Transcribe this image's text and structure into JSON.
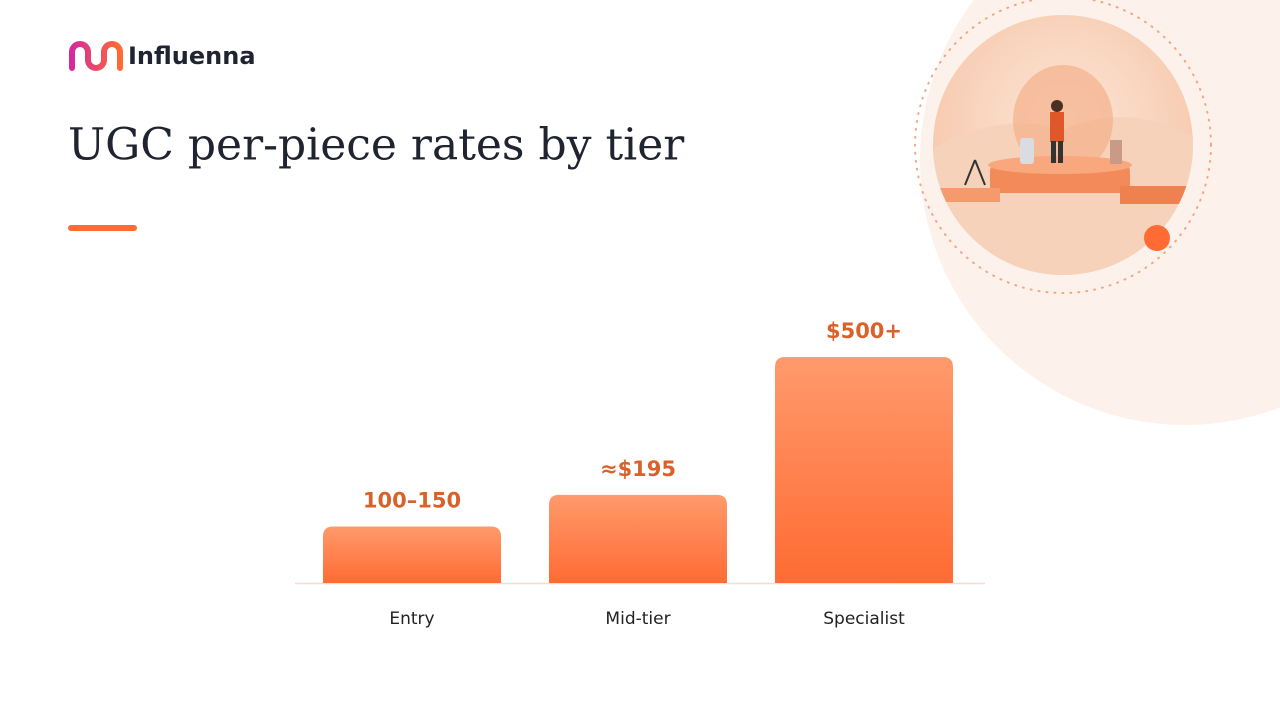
{
  "brand": "Influenna",
  "chart_data": {
    "type": "bar",
    "title": "UGC per-piece rates by tier",
    "categories": [
      "Entry",
      "Mid-tier",
      "Specialist"
    ],
    "values": [
      125,
      195,
      500
    ],
    "value_labels": [
      "100–150",
      "≈$195",
      "$500+"
    ],
    "color": "#ff7a45",
    "ylim": [
      0,
      500
    ]
  }
}
